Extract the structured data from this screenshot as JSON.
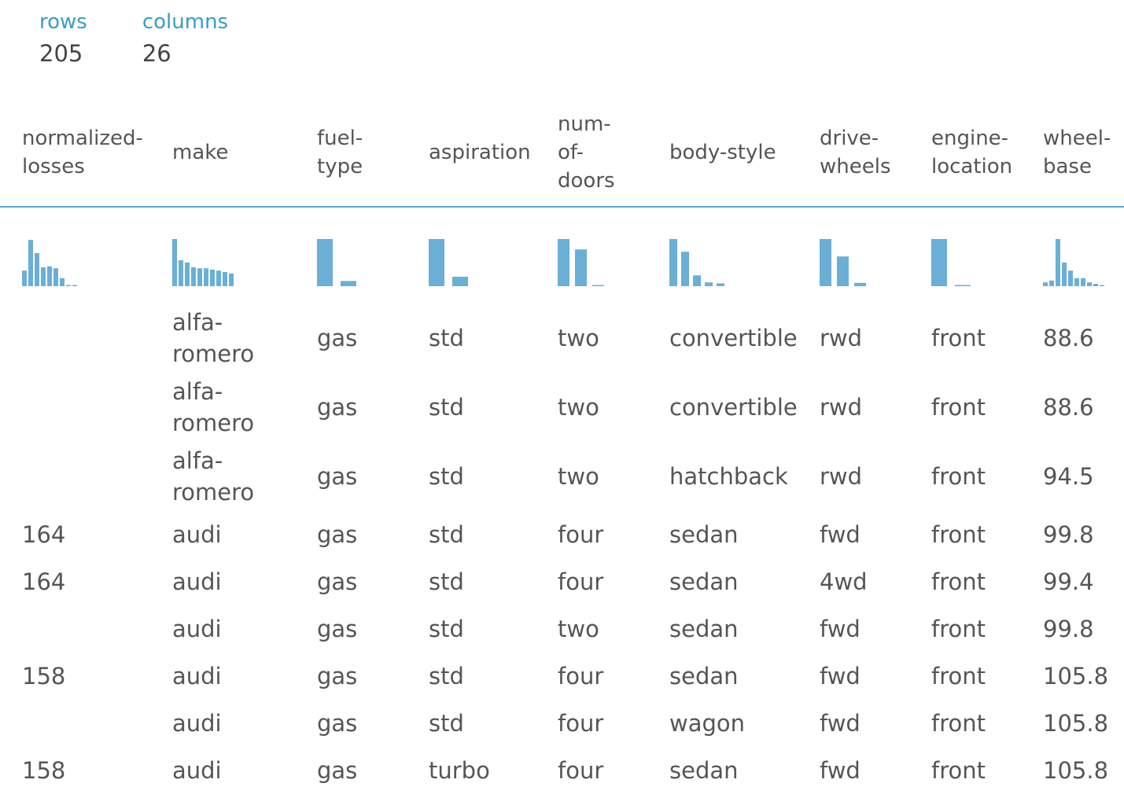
{
  "summary": {
    "rows_label": "rows",
    "rows_value": "205",
    "columns_label": "columns",
    "columns_value": "26"
  },
  "colors": {
    "accent": "#3a9dc4",
    "histogram_bar": "#6aafd6",
    "rule": "#5aa4d1"
  },
  "columns": [
    {
      "id": "normalized-losses",
      "label": "normalized-\nlosses",
      "histogram": [
        0.33,
        0.98,
        0.7,
        0.4,
        0.42,
        0.38,
        0.17,
        0.02,
        0.02
      ]
    },
    {
      "id": "make",
      "label": "make",
      "histogram": [
        1.0,
        0.55,
        0.5,
        0.4,
        0.38,
        0.38,
        0.35,
        0.33,
        0.3,
        0.27
      ]
    },
    {
      "id": "fuel-type",
      "label": "fuel-\ntype",
      "histogram": [
        1.0,
        0.11
      ]
    },
    {
      "id": "aspiration",
      "label": "aspiration",
      "histogram": [
        1.0,
        0.2
      ]
    },
    {
      "id": "num-of-doors",
      "label": "num-\nof-\ndoors",
      "histogram": [
        1.0,
        0.78,
        0.02
      ]
    },
    {
      "id": "body-style",
      "label": "body-style",
      "histogram": [
        1.0,
        0.73,
        0.23,
        0.08,
        0.06
      ]
    },
    {
      "id": "drive-wheels",
      "label": "drive-\nwheels",
      "histogram": [
        1.0,
        0.63,
        0.07
      ]
    },
    {
      "id": "engine-location",
      "label": "engine-\nlocation",
      "histogram": [
        1.0,
        0.02
      ]
    },
    {
      "id": "wheel-base",
      "label": "wheel-\nbase",
      "histogram": [
        0.08,
        0.12,
        1.0,
        0.5,
        0.33,
        0.17,
        0.17,
        0.08,
        0.05,
        0.02
      ]
    }
  ],
  "rows": [
    [
      "",
      "alfa-\nromero",
      "gas",
      "std",
      "two",
      "convertible",
      "rwd",
      "front",
      "88.6"
    ],
    [
      "",
      "alfa-\nromero",
      "gas",
      "std",
      "two",
      "convertible",
      "rwd",
      "front",
      "88.6"
    ],
    [
      "",
      "alfa-\nromero",
      "gas",
      "std",
      "two",
      "hatchback",
      "rwd",
      "front",
      "94.5"
    ],
    [
      "164",
      "audi",
      "gas",
      "std",
      "four",
      "sedan",
      "fwd",
      "front",
      "99.8"
    ],
    [
      "164",
      "audi",
      "gas",
      "std",
      "four",
      "sedan",
      "4wd",
      "front",
      "99.4"
    ],
    [
      "",
      "audi",
      "gas",
      "std",
      "two",
      "sedan",
      "fwd",
      "front",
      "99.8"
    ],
    [
      "158",
      "audi",
      "gas",
      "std",
      "four",
      "sedan",
      "fwd",
      "front",
      "105.8"
    ],
    [
      "",
      "audi",
      "gas",
      "std",
      "four",
      "wagon",
      "fwd",
      "front",
      "105.8"
    ],
    [
      "158",
      "audi",
      "gas",
      "turbo",
      "four",
      "sedan",
      "fwd",
      "front",
      "105.8"
    ]
  ]
}
